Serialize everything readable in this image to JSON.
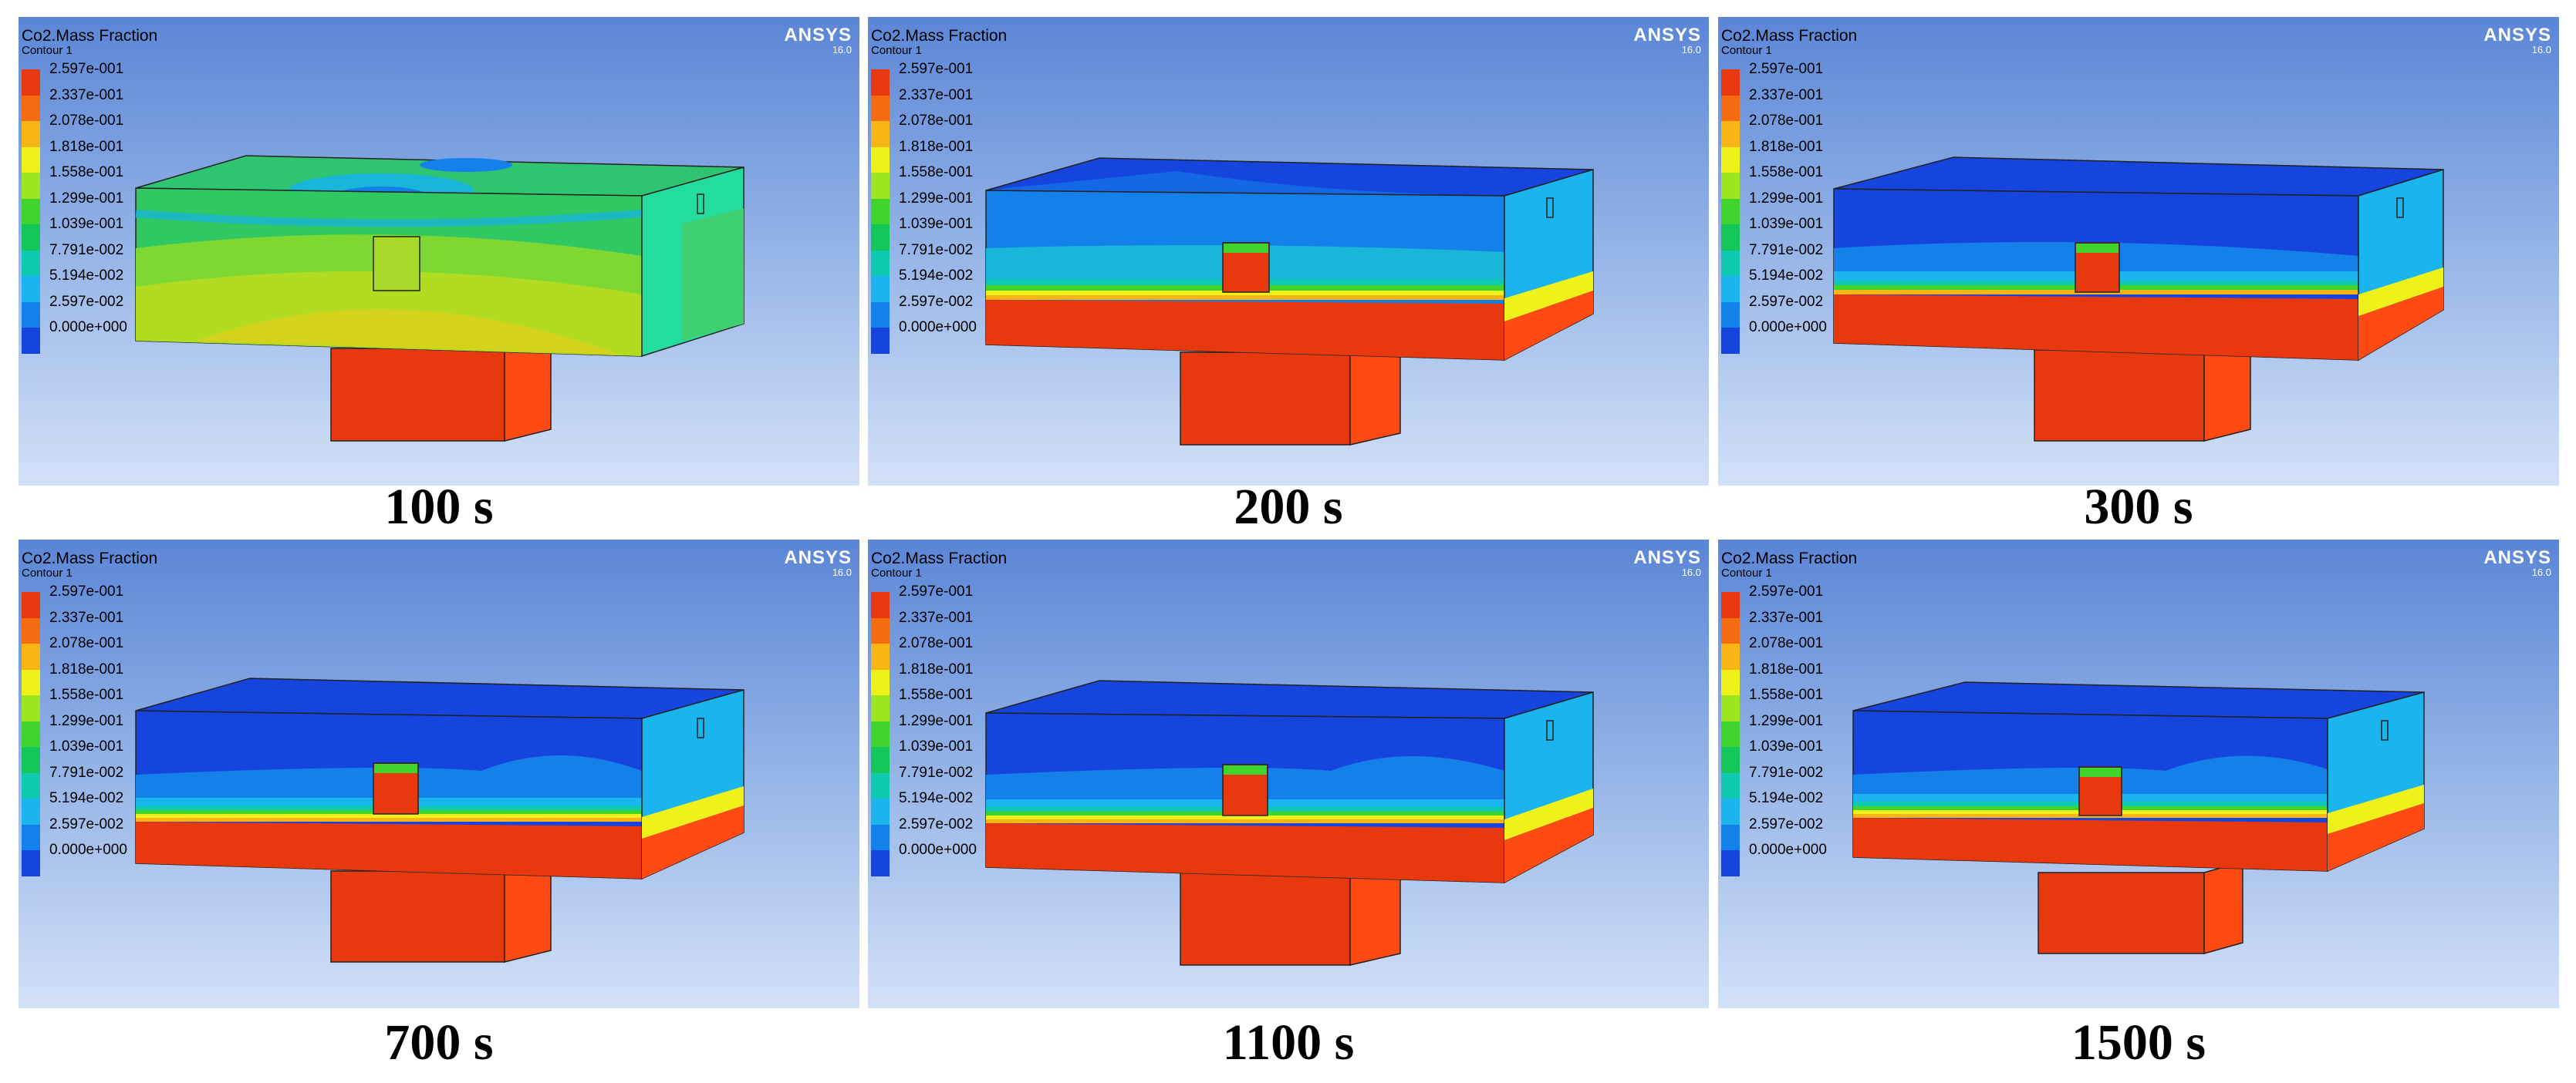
{
  "common": {
    "variable": "Co2.Mass Fraction",
    "contour": "Contour 1",
    "brand": "ANSYS",
    "version": "16.0",
    "legend_values": [
      "2.597e-001",
      "2.337e-001",
      "2.078e-001",
      "1.818e-001",
      "1.558e-001",
      "1.299e-001",
      "1.039e-001",
      "7.791e-002",
      "5.194e-002",
      "2.597e-002",
      "0.000e+000"
    ],
    "legend_colors": [
      "#e8380d",
      "#f56c10",
      "#f9b415",
      "#eef21a",
      "#9ee61f",
      "#3fd52c",
      "#13c65a",
      "#10c9b1",
      "#1ab5ee",
      "#1480ea",
      "#1644df"
    ]
  },
  "panels": [
    {
      "caption": "100 s"
    },
    {
      "caption": "200 s"
    },
    {
      "caption": "300 s"
    },
    {
      "caption": "700 s"
    },
    {
      "caption": "1100 s"
    },
    {
      "caption": "1500 s"
    }
  ]
}
